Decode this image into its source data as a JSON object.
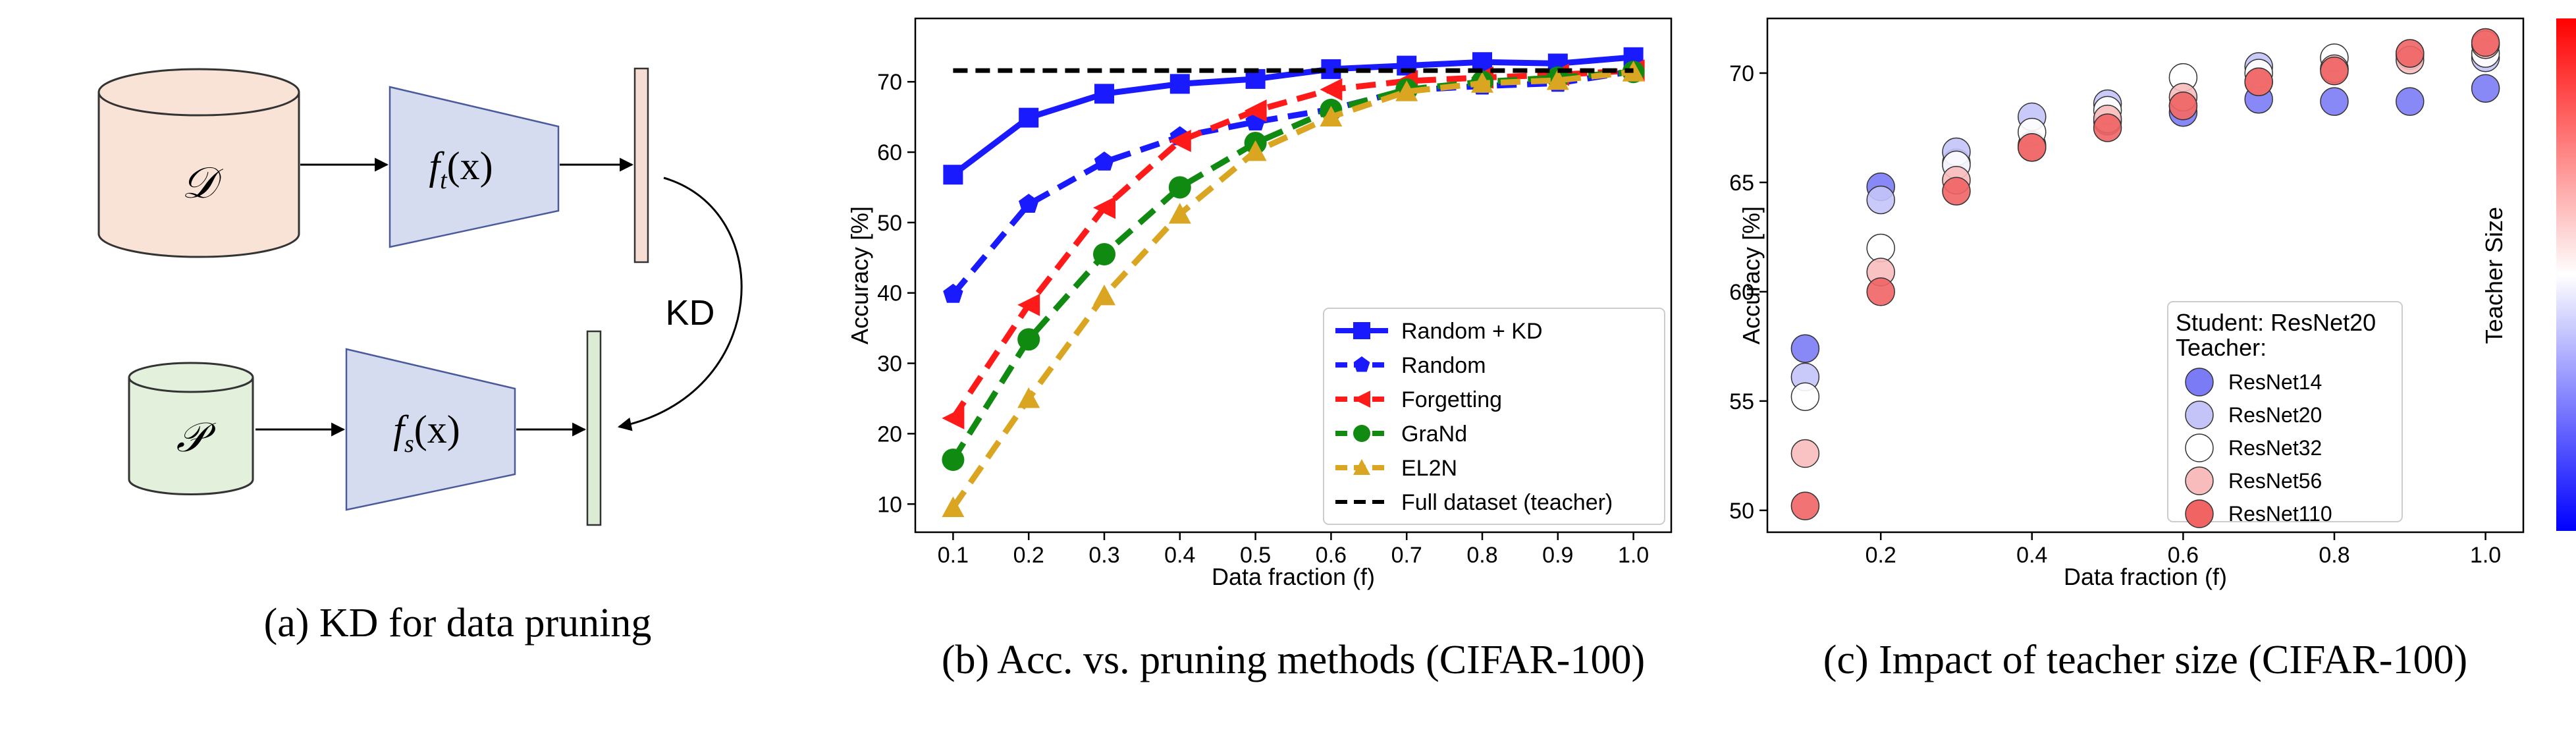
{
  "panel_a": {
    "caption": "(a) KD for data pruning",
    "dataset_symbol": "𝒟",
    "pruned_symbol": "𝒫",
    "teacher_label": "f",
    "teacher_sub": "t",
    "teacher_arg": "(x)",
    "student_label": "f",
    "student_sub": "s",
    "student_arg": "(x)",
    "kd_label": "KD",
    "colors": {
      "dataset": "#f9e3d7",
      "pruned": "#e3f0dc",
      "model": "#d6dcf0",
      "teacher_out": "#f6dcd2",
      "student_out": "#dcebd4"
    }
  },
  "chart_b": {
    "caption": "(b) Acc. vs. pruning methods (CIFAR-100)",
    "chart_data": {
      "type": "line",
      "xlabel": "Data fraction (f)",
      "ylabel": "Accuracy [%]",
      "x": [
        0.1,
        0.2,
        0.3,
        0.4,
        0.5,
        0.6,
        0.7,
        0.8,
        0.9,
        1.0
      ],
      "xticks": [
        "0.1",
        "0.2",
        "0.3",
        "0.4",
        "0.5",
        "0.6",
        "0.7",
        "0.8",
        "0.9",
        "1.0"
      ],
      "yticks": [
        "10",
        "20",
        "30",
        "40",
        "50",
        "60",
        "70"
      ],
      "xlim": [
        0.05,
        1.05
      ],
      "ylim": [
        6,
        79
      ],
      "legend_position": "lower-right",
      "series": [
        {
          "name": "Random + KD",
          "color": "#1a1aff",
          "style": "solid",
          "marker": "square",
          "values": [
            56.8,
            64.9,
            68.3,
            69.7,
            70.4,
            71.8,
            72.3,
            72.8,
            72.6,
            73.5
          ]
        },
        {
          "name": "Random",
          "color": "#1a1aff",
          "style": "dashed",
          "marker": "pentagon",
          "values": [
            39.8,
            52.6,
            58.6,
            62.2,
            64.3,
            66.1,
            68.8,
            69.4,
            69.8,
            71.5
          ]
        },
        {
          "name": "Forgetting",
          "color": "#ff1a1a",
          "style": "dashed",
          "marker": "triangle-left",
          "values": [
            22.2,
            38.3,
            52.1,
            61.6,
            65.9,
            68.9,
            70.1,
            70.6,
            71.0,
            71.6
          ]
        },
        {
          "name": "GraNd",
          "color": "#108a10",
          "style": "dashed",
          "marker": "circle",
          "values": [
            16.3,
            33.4,
            45.5,
            55.0,
            61.3,
            66.0,
            68.9,
            70.0,
            70.6,
            71.4
          ]
        },
        {
          "name": "EL2N",
          "color": "#daa520",
          "style": "dashed",
          "marker": "triangle-up",
          "values": [
            9.5,
            25.0,
            39.6,
            51.2,
            60.1,
            65.0,
            68.6,
            69.8,
            70.2,
            71.4
          ]
        },
        {
          "name": "Full dataset (teacher)",
          "color": "#000000",
          "style": "dashed",
          "marker": "none",
          "values": [
            71.6,
            71.6,
            71.6,
            71.6,
            71.6,
            71.6,
            71.6,
            71.6,
            71.6,
            71.6
          ]
        }
      ]
    }
  },
  "chart_c": {
    "caption": "(c) Impact of teacher size (CIFAR-100)",
    "colorbar_label": "Teacher Size",
    "legend_title_1": "Student: ResNet20",
    "legend_title_2": "Teacher:",
    "chart_data": {
      "type": "scatter",
      "xlabel": "Data fraction (f)",
      "ylabel": "Accuracy [%]",
      "xticks": [
        "0.2",
        "0.4",
        "0.6",
        "0.8",
        "1.0"
      ],
      "xtick_values": [
        0.2,
        0.4,
        0.6,
        0.8,
        1.0
      ],
      "yticks": [
        "50",
        "55",
        "60",
        "65",
        "70"
      ],
      "ytick_values": [
        50,
        55,
        60,
        65,
        70
      ],
      "xlim": [
        0.05,
        1.05
      ],
      "ylim": [
        49,
        72.5
      ],
      "legend_position": "lower-right",
      "x": [
        0.1,
        0.2,
        0.3,
        0.4,
        0.5,
        0.6,
        0.7,
        0.8,
        0.9,
        1.0
      ],
      "series": [
        {
          "name": "ResNet14",
          "color": "#7b7bf5",
          "values": [
            57.4,
            64.8,
            65.9,
            66.7,
            67.8,
            68.2,
            68.8,
            68.7,
            68.7,
            69.3
          ]
        },
        {
          "name": "ResNet20",
          "color": "#c4c4f9",
          "values": [
            56.1,
            64.2,
            66.4,
            68.0,
            68.6,
            68.5,
            70.3,
            70.2,
            70.8,
            70.7
          ]
        },
        {
          "name": "ResNet32",
          "color": "#ffffff",
          "values": [
            55.2,
            62.0,
            65.8,
            67.3,
            68.3,
            69.8,
            70.0,
            70.7,
            70.9,
            70.9
          ]
        },
        {
          "name": "ResNet56",
          "color": "#f8bcbc",
          "values": [
            52.6,
            60.9,
            65.1,
            66.6,
            67.9,
            68.9,
            69.6,
            70.2,
            70.6,
            71.3
          ]
        },
        {
          "name": "ResNet110",
          "color": "#f06464",
          "values": [
            50.2,
            60.0,
            64.6,
            66.6,
            67.5,
            68.5,
            69.6,
            70.1,
            70.9,
            71.4
          ]
        }
      ]
    }
  }
}
